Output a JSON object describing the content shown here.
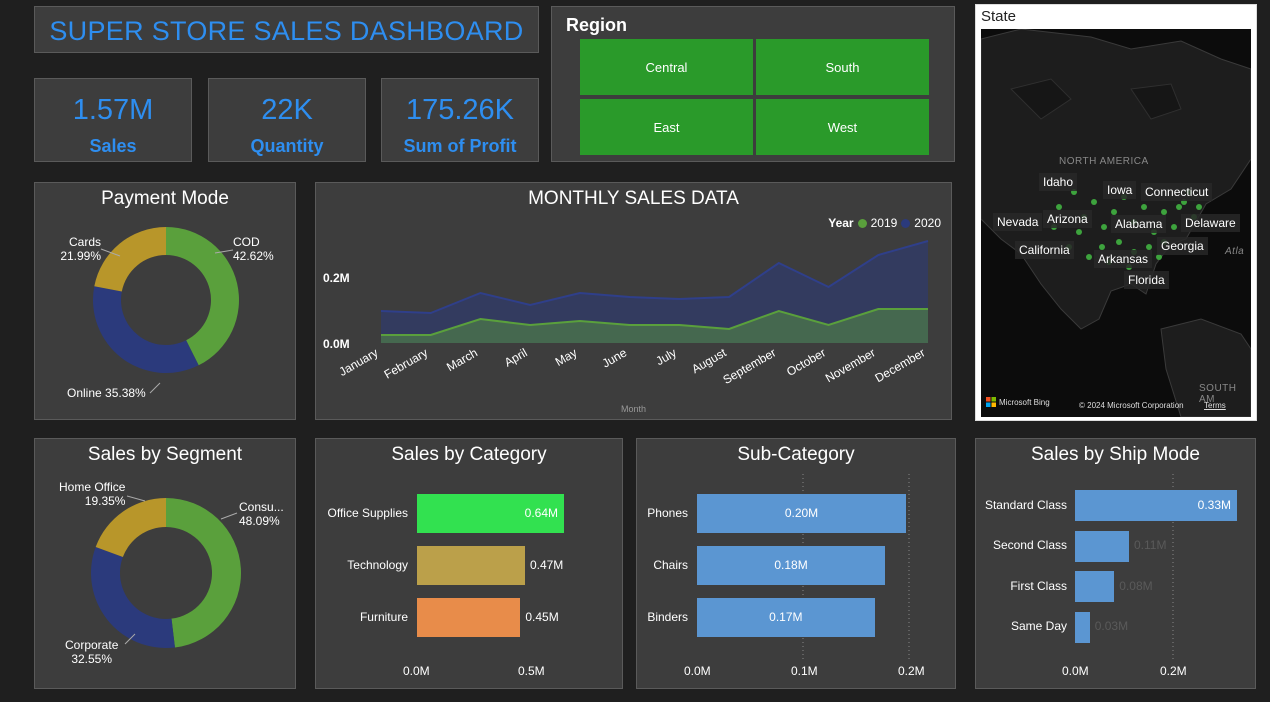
{
  "header": {
    "title": "SUPER STORE SALES DASHBOARD"
  },
  "kpis": [
    {
      "value": "1.57M",
      "label": "Sales"
    },
    {
      "value": "22K",
      "label": "Quantity"
    },
    {
      "value": "175.26K",
      "label": "Sum of Profit"
    }
  ],
  "region": {
    "title": "Region",
    "buttons": [
      "Central",
      "South",
      "East",
      "West"
    ]
  },
  "state": {
    "title": "State",
    "region_labels": [
      "NORTH AMERICA",
      "Atla",
      "SOUTH AM"
    ],
    "labels": [
      "Idaho",
      "Iowa",
      "Connecticut",
      "Nevada",
      "Arizona",
      "Alabama",
      "Delaware",
      "California",
      "Georgia",
      "Arkansas",
      "Florida"
    ],
    "attribution": "Microsoft Bing",
    "copyright": "© 2024 Microsoft Corporation",
    "terms": "Terms"
  },
  "payment_mode": {
    "title": "Payment Mode",
    "segments": [
      {
        "name": "COD",
        "pct": "42.62%",
        "value": 42.62,
        "color": "#5aa03c"
      },
      {
        "name": "Online",
        "pct": "35.38%",
        "value": 35.38,
        "color": "#2b3a7c"
      },
      {
        "name": "Cards",
        "pct": "21.99%",
        "value": 21.99,
        "color": "#b8962a"
      }
    ]
  },
  "monthly_sales": {
    "title": "MONTHLY SALES DATA",
    "legend_title": "Year",
    "xlabel": "Month",
    "yticks": [
      "0.2M",
      "0.0M"
    ]
  },
  "segment": {
    "title": "Sales by Segment",
    "segments": [
      {
        "name": "Consu...",
        "pct": "48.09%",
        "value": 48.09,
        "color": "#5aa03c"
      },
      {
        "name": "Corporate",
        "pct": "32.55%",
        "value": 32.55,
        "color": "#2b3a7c"
      },
      {
        "name": "Home Office",
        "pct": "19.35%",
        "value": 19.35,
        "color": "#b8962a"
      }
    ]
  },
  "category": {
    "title": "Sales by Category",
    "items": [
      {
        "name": "Office Supplies",
        "value": 0.64,
        "label": "0.64M",
        "color": "#32e150"
      },
      {
        "name": "Technology",
        "value": 0.47,
        "label": "0.47M",
        "color": "#bba04a"
      },
      {
        "name": "Furniture",
        "value": 0.45,
        "label": "0.45M",
        "color": "#e88c4a"
      }
    ],
    "xticks": [
      "0.0M",
      "0.5M"
    ]
  },
  "subcategory": {
    "title": "Sub-Category",
    "items": [
      {
        "name": "Phones",
        "value": 0.2,
        "label": "0.20M"
      },
      {
        "name": "Chairs",
        "value": 0.18,
        "label": "0.18M"
      },
      {
        "name": "Binders",
        "value": 0.17,
        "label": "0.17M"
      }
    ],
    "xticks": [
      "0.0M",
      "0.1M",
      "0.2M"
    ]
  },
  "shipmode": {
    "title": "Sales by Ship Mode",
    "items": [
      {
        "name": "Standard Class",
        "value": 0.33,
        "label": "0.33M"
      },
      {
        "name": "Second Class",
        "value": 0.11,
        "label": "0.11M"
      },
      {
        "name": "First Class",
        "value": 0.08,
        "label": "0.08M"
      },
      {
        "name": "Same Day",
        "value": 0.03,
        "label": "0.03M"
      }
    ],
    "xticks": [
      "0.0M",
      "0.2M"
    ]
  },
  "chart_data": [
    {
      "type": "area",
      "title": "MONTHLY SALES DATA",
      "xlabel": "Month",
      "ylabel": "",
      "categories": [
        "January",
        "February",
        "March",
        "April",
        "May",
        "June",
        "July",
        "August",
        "September",
        "October",
        "November",
        "December"
      ],
      "series": [
        {
          "name": "2019",
          "color": "#5aa03c",
          "values": [
            0.02,
            0.02,
            0.06,
            0.045,
            0.055,
            0.045,
            0.045,
            0.035,
            0.08,
            0.045,
            0.085,
            0.085
          ]
        },
        {
          "name": "2020",
          "color": "#2b3a7c",
          "values": [
            0.08,
            0.075,
            0.125,
            0.095,
            0.125,
            0.115,
            0.11,
            0.115,
            0.2,
            0.14,
            0.22,
            0.255
          ]
        }
      ],
      "ylim": [
        0,
        0.28
      ]
    },
    {
      "type": "pie",
      "title": "Payment Mode",
      "categories": [
        "COD",
        "Online",
        "Cards"
      ],
      "values": [
        42.62,
        35.38,
        21.99
      ]
    },
    {
      "type": "pie",
      "title": "Sales by Segment",
      "categories": [
        "Consumer",
        "Corporate",
        "Home Office"
      ],
      "values": [
        48.09,
        32.55,
        19.35
      ]
    },
    {
      "type": "bar",
      "title": "Sales by Category",
      "categories": [
        "Office Supplies",
        "Technology",
        "Furniture"
      ],
      "values": [
        0.64,
        0.47,
        0.45
      ],
      "xlim": [
        0,
        0.7
      ]
    },
    {
      "type": "bar",
      "title": "Sub-Category",
      "categories": [
        "Phones",
        "Chairs",
        "Binders"
      ],
      "values": [
        0.2,
        0.18,
        0.17
      ],
      "xlim": [
        0,
        0.2
      ]
    },
    {
      "type": "bar",
      "title": "Sales by Ship Mode",
      "categories": [
        "Standard Class",
        "Second Class",
        "First Class",
        "Same Day"
      ],
      "values": [
        0.33,
        0.11,
        0.08,
        0.03
      ],
      "xlim": [
        0,
        0.33
      ]
    }
  ]
}
